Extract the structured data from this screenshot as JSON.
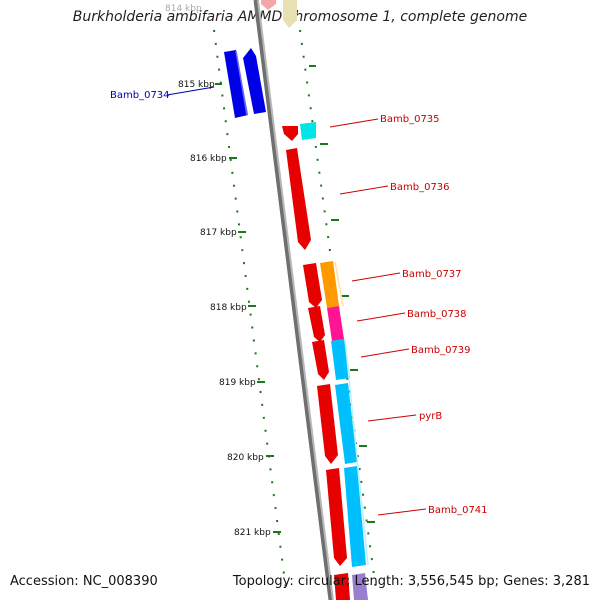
{
  "title": "Burkholderia ambifaria AMMD chromosome 1, complete genome",
  "accession": "Accession: NC_008390",
  "topology": "Topology: circular; Length: 3,556,545 bp; Genes: 3,281",
  "colors": {
    "backbone": "#8c8c8c",
    "tick": "#1a7a1a",
    "label_fwd": "#cc0000",
    "label_rev": "#0000b0"
  },
  "ticks": [
    {
      "label": "814 kbp",
      "faded": true
    },
    {
      "label": "815 kbp"
    },
    {
      "label": "816 kbp"
    },
    {
      "label": "817 kbp"
    },
    {
      "label": "818 kbp"
    },
    {
      "label": "819 kbp"
    },
    {
      "label": "820 kbp"
    },
    {
      "label": "821 kbp"
    }
  ],
  "gene_labels": {
    "bamb_0734": "Bamb_0734",
    "bamb_0735": "Bamb_0735",
    "bamb_0736": "Bamb_0736",
    "bamb_0737": "Bamb_0737",
    "bamb_0738": "Bamb_0738",
    "bamb_0739": "Bamb_0739",
    "pyrb": "pyrB",
    "bamb_0741": "Bamb_0741"
  }
}
